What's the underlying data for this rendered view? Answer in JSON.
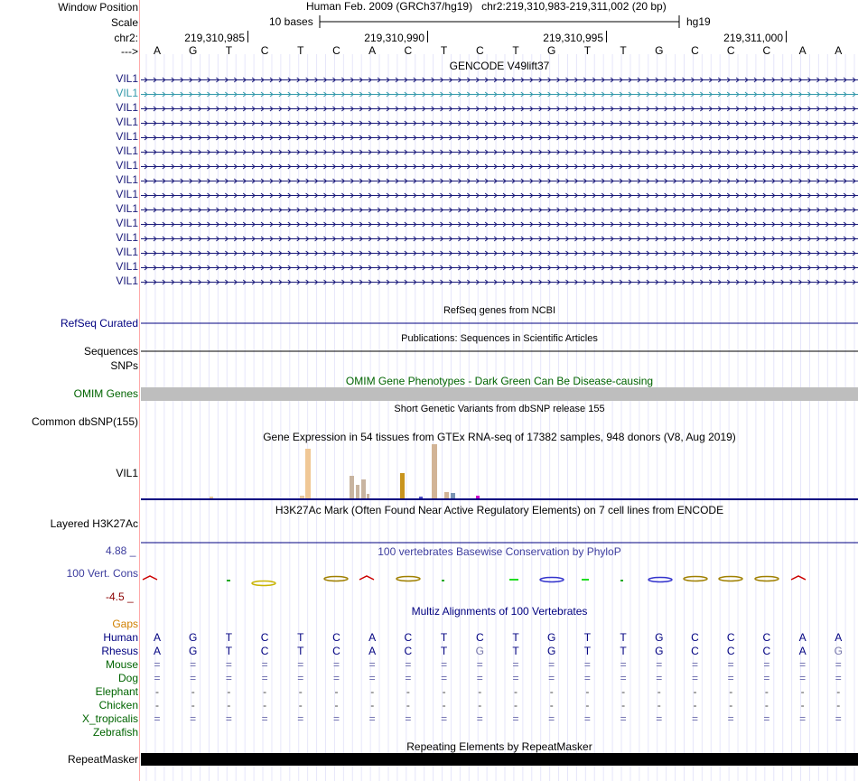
{
  "header": {
    "window_position_label": "Window Position",
    "scale_label": "Scale",
    "chrom_label": "chr2:",
    "strand_label": "--->",
    "assembly_desc": "Human Feb. 2009 (GRCh37/hg19)",
    "position": "chr2:219,310,983-219,311,002 (20 bp)",
    "scale_text": "10 bases",
    "db": "hg19",
    "coords": [
      "219,310,985",
      "219,310,990",
      "219,310,995",
      "219,311,000"
    ],
    "bases": [
      "A",
      "G",
      "T",
      "C",
      "T",
      "C",
      "A",
      "C",
      "T",
      "C",
      "T",
      "G",
      "T",
      "T",
      "G",
      "C",
      "C",
      "C",
      "A",
      "A"
    ]
  },
  "gencode": {
    "title": "GENCODE V49lift37",
    "genes": [
      "VIL1",
      "VIL1",
      "VIL1",
      "VIL1",
      "VIL1",
      "VIL1",
      "VIL1",
      "VIL1",
      "VIL1",
      "VIL1",
      "VIL1",
      "VIL1",
      "VIL1",
      "VIL1",
      "VIL1"
    ],
    "highlight_index": 1,
    "color": "#1a1a7a",
    "highlight_color": "#3399aa"
  },
  "refseq": {
    "label": "RefSeq Curated",
    "title": "RefSeq genes from NCBI"
  },
  "sequences": {
    "label": "Sequences",
    "title": "Publications: Sequences in Scientific Articles"
  },
  "snps": {
    "label": "SNPs"
  },
  "omim": {
    "label": "OMIM Genes",
    "title": "OMIM Gene Phenotypes - Dark Green Can Be Disease-causing"
  },
  "dbsnp": {
    "label": "Common dbSNP(155)",
    "title": "Short Genetic Variants from dbSNP release 155"
  },
  "gtex": {
    "title": "Gene Expression in 54 tissues from GTEx RNA-seq of 17382 samples, 948 donors (V8, Aug 2019)",
    "label": "VIL1"
  },
  "h3k27ac": {
    "label": "Layered H3K27Ac",
    "title": "H3K27Ac Mark (Often Found Near Active Regulatory Elements) on 7 cell lines from ENCODE"
  },
  "phylop": {
    "max": "4.88 _",
    "min": "-4.5 _",
    "label": "100 Vert. Cons",
    "title": "100 vertebrates Basewise Conservation by PhyloP"
  },
  "multiz": {
    "title": "Multiz Alignments of 100 Vertebrates",
    "gaps_label": "Gaps",
    "species": [
      {
        "name": "Human",
        "row": [
          "A",
          "G",
          "T",
          "C",
          "T",
          "C",
          "A",
          "C",
          "T",
          "C",
          "T",
          "G",
          "T",
          "T",
          "G",
          "C",
          "C",
          "C",
          "A",
          "A"
        ]
      },
      {
        "name": "Rhesus",
        "row": [
          "A",
          "G",
          "T",
          "C",
          "T",
          "C",
          "A",
          "C",
          "T",
          "G",
          "T",
          "G",
          "T",
          "T",
          "G",
          "C",
          "C",
          "C",
          "A",
          "G"
        ]
      },
      {
        "name": "Mouse",
        "row": [
          "=",
          "=",
          "=",
          "=",
          "=",
          "=",
          "=",
          "=",
          "=",
          "=",
          "=",
          "=",
          "=",
          "=",
          "=",
          "=",
          "=",
          "=",
          "=",
          "="
        ]
      },
      {
        "name": "Dog",
        "row": [
          "=",
          "=",
          "=",
          "=",
          "=",
          "=",
          "=",
          "=",
          "=",
          "=",
          "=",
          "=",
          "=",
          "=",
          "=",
          "=",
          "=",
          "=",
          "=",
          "="
        ]
      },
      {
        "name": "Elephant",
        "row": [
          "-",
          "-",
          "-",
          "-",
          "-",
          "-",
          "-",
          "-",
          "-",
          "-",
          "-",
          "-",
          "-",
          "-",
          "-",
          "-",
          "-",
          "-",
          "-",
          "-"
        ]
      },
      {
        "name": "Chicken",
        "row": [
          "-",
          "-",
          "-",
          "-",
          "-",
          "-",
          "-",
          "-",
          "-",
          "-",
          "-",
          "-",
          "-",
          "-",
          "-",
          "-",
          "-",
          "-",
          "-",
          "-"
        ]
      },
      {
        "name": "X_tropicalis",
        "row": [
          "=",
          "=",
          "=",
          "=",
          "=",
          "=",
          "=",
          "=",
          "=",
          "=",
          "=",
          "=",
          "=",
          "=",
          "=",
          "=",
          "=",
          "=",
          "=",
          "="
        ]
      },
      {
        "name": "Zebrafish",
        "row": []
      }
    ]
  },
  "repeatmasker": {
    "label": "RepeatMasker",
    "title": "Repeating Elements by RepeatMasker"
  },
  "colors": {
    "navy": "#000080",
    "green": "#006400",
    "orange": "#d08000",
    "blue_title": "#3d3d9e",
    "dark_red": "#8b0000",
    "grid": "#e4e4ff",
    "guide": "#ff9999"
  }
}
